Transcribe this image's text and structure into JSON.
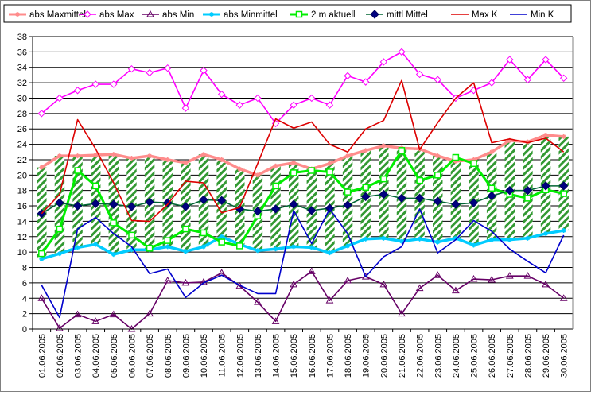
{
  "chart_data": {
    "type": "line",
    "x": [
      "01.06.2005",
      "02.06.2005",
      "03.06.2005",
      "04.06.2005",
      "05.06.2005",
      "06.06.2005",
      "07.06.2005",
      "08.06.2005",
      "09.06.2005",
      "10.06.2005",
      "11.06.2005",
      "12.06.2005",
      "13.06.2005",
      "14.06.2005",
      "15.06.2005",
      "16.06.2005",
      "17.06.2005",
      "18.06.2005",
      "19.06.2005",
      "20.06.2005",
      "21.06.2005",
      "22.06.2005",
      "23.06.2005",
      "24.06.2005",
      "25.06.2005",
      "26.06.2005",
      "27.06.2005",
      "28.06.2005",
      "29.06.2005",
      "30.06.2005"
    ],
    "ylim": [
      0,
      38
    ],
    "yticks": [
      0,
      2,
      4,
      6,
      8,
      10,
      12,
      14,
      16,
      18,
      20,
      22,
      24,
      26,
      28,
      30,
      32,
      34,
      36,
      38
    ],
    "grid": true,
    "legend_position": "top",
    "band": {
      "upper_series": "abs Maxmittel",
      "lower_series": "abs Minmittel",
      "fill_color": "#339933",
      "style": "diagonal-hatch"
    },
    "series": [
      {
        "name": "abs Maxmittel",
        "color": "#ff8c8c",
        "marker": "star",
        "values": [
          21.0,
          22.5,
          22.5,
          22.6,
          22.7,
          22.2,
          22.5,
          22.0,
          21.6,
          22.7,
          22.0,
          20.8,
          20.0,
          21.2,
          21.6,
          20.8,
          21.5,
          22.5,
          23.2,
          23.8,
          23.5,
          23.4,
          22.5,
          21.8,
          22.0,
          23.0,
          24.5,
          24.3,
          25.2,
          25.0
        ]
      },
      {
        "name": "abs Max",
        "color": "#ff00ff",
        "marker": "diamond-open",
        "values": [
          28.0,
          30.0,
          31.0,
          31.8,
          31.8,
          33.8,
          33.3,
          33.9,
          28.7,
          33.6,
          30.5,
          29.1,
          30.0,
          26.7,
          29.1,
          30.0,
          29.1,
          32.9,
          32.1,
          34.7,
          36.0,
          33.1,
          32.4,
          30.0,
          31.0,
          32.0,
          35.0,
          32.4,
          35.0,
          32.6
        ]
      },
      {
        "name": "abs Min",
        "color": "#660066",
        "marker": "triangle-open",
        "values": [
          4.0,
          0.1,
          1.9,
          1.0,
          1.9,
          0.0,
          2.0,
          6.3,
          6.0,
          6.1,
          7.3,
          5.6,
          3.5,
          1.0,
          5.8,
          7.5,
          3.7,
          6.3,
          6.8,
          5.8,
          2.0,
          5.3,
          7.0,
          5.0,
          6.5,
          6.4,
          6.9,
          6.9,
          5.8,
          4.0
        ]
      },
      {
        "name": "abs Minmittel",
        "color": "#00ccff",
        "marker": "star",
        "values": [
          9.1,
          9.8,
          10.6,
          11.0,
          9.7,
          10.3,
          10.3,
          10.7,
          10.1,
          10.7,
          12.0,
          11.0,
          10.2,
          10.4,
          10.7,
          10.6,
          9.9,
          10.8,
          11.7,
          11.8,
          11.4,
          11.7,
          11.3,
          11.8,
          10.9,
          11.6,
          11.6,
          11.8,
          12.4,
          12.8
        ]
      },
      {
        "name": "2 m aktuell",
        "color": "#00ee00",
        "marker": "square-open",
        "values": [
          9.8,
          13.0,
          20.6,
          18.6,
          13.8,
          12.2,
          10.5,
          11.5,
          13.0,
          12.5,
          11.3,
          10.8,
          14.7,
          18.6,
          20.3,
          20.6,
          20.4,
          17.8,
          18.4,
          19.5,
          23.2,
          19.3,
          20.0,
          22.3,
          21.5,
          18.3,
          17.5,
          17.0,
          18.1,
          17.6
        ]
      },
      {
        "name": "mittl Mittel",
        "color": "#006633",
        "marker": "diamond-filled",
        "values": [
          15.0,
          16.4,
          16.0,
          16.3,
          16.2,
          15.9,
          16.5,
          16.4,
          15.9,
          16.8,
          16.7,
          15.6,
          15.3,
          15.6,
          16.2,
          15.4,
          15.7,
          16.1,
          17.2,
          17.5,
          17.0,
          17.0,
          16.6,
          16.2,
          16.4,
          17.3,
          18.0,
          18.0,
          18.6,
          18.6
        ]
      },
      {
        "name": "Max K",
        "color": "#dd0000",
        "marker": "none",
        "values": [
          15.0,
          17.5,
          27.2,
          23.4,
          19.0,
          14.1,
          14.0,
          16.2,
          19.2,
          19.0,
          15.1,
          15.8,
          21.5,
          27.3,
          26.1,
          26.9,
          24.0,
          23.0,
          26.0,
          27.1,
          32.3,
          23.3,
          26.8,
          30.0,
          32.0,
          24.2,
          24.7,
          24.2,
          24.8,
          23.0
        ]
      },
      {
        "name": "Min K",
        "color": "#0000cc",
        "marker": "none",
        "values": [
          5.7,
          1.5,
          13.0,
          14.5,
          12.4,
          10.7,
          7.2,
          7.8,
          4.1,
          6.0,
          7.0,
          5.7,
          4.6,
          4.6,
          15.4,
          11.1,
          15.6,
          12.4,
          6.8,
          9.4,
          10.7,
          15.6,
          9.9,
          11.6,
          14.1,
          12.7,
          10.4,
          8.8,
          7.3,
          12.2
        ]
      }
    ]
  }
}
